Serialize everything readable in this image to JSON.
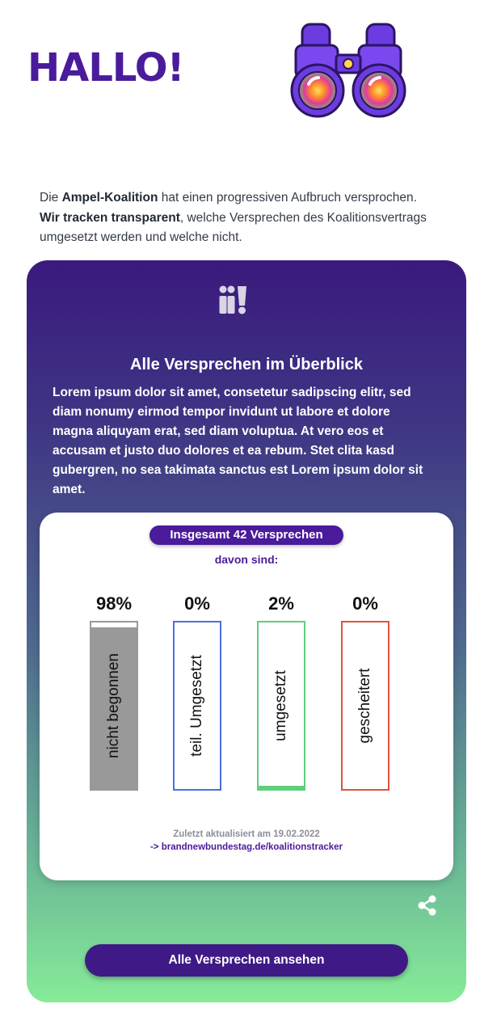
{
  "header": {
    "title": "HALLO!",
    "illustration_icon": "binoculars-icon"
  },
  "intro": {
    "prefix": "Die ",
    "bold1": "Ampel-Koalition",
    "mid1": " hat einen progressiven Aufbruch versprochen.",
    "bold2": "Wir tracken transparent",
    "mid2": ", welche Versprechen des Koalitionsvertrags umgesetzt werden und welche nicht."
  },
  "card": {
    "logo_icon": "brand-logo-icon",
    "title": "Alle Versprechen im Überblick",
    "body": "Lorem ipsum dolor sit amet, consetetur sadipscing elitr, sed diam nonumy eirmod tempor invidunt ut labore et dolore magna aliquyam erat, sed diam voluptua. At vero eos et accusam et justo duo dolores et ea rebum. Stet clita kasd gubergren, no sea takimata sanctus est Lorem ipsum dolor sit amet.",
    "total_label": "Insgesamt 42 Versprechen",
    "subtitle": "davon sind:",
    "updated": "Zuletzt aktualisiert am 19.02.2022",
    "link": "-> brandnewbundestag.de/koalitionstracker",
    "share_icon": "share-icon",
    "cta": "Alle Versprechen ansehen"
  },
  "stats": [
    {
      "percent": "98%",
      "value": 0.98,
      "label": "nicht begonnen",
      "border": "#999999",
      "fill": "#999999"
    },
    {
      "percent": "0%",
      "value": 0.0,
      "label": "teil. Umgesetzt",
      "border": "#4a6fe0",
      "fill": "#4a6fe0"
    },
    {
      "percent": "2%",
      "value": 0.02,
      "label": "umgesetzt",
      "border": "#5fcf7a",
      "fill": "#5fcf7a"
    },
    {
      "percent": "0%",
      "value": 0.0,
      "label": "gescheitert",
      "border": "#e0533e",
      "fill": "#e0533e"
    }
  ],
  "colors": {
    "brand_purple": "#4a1b9b",
    "gradient_top": "#3a1a7d",
    "gradient_bottom": "#86eb98"
  }
}
